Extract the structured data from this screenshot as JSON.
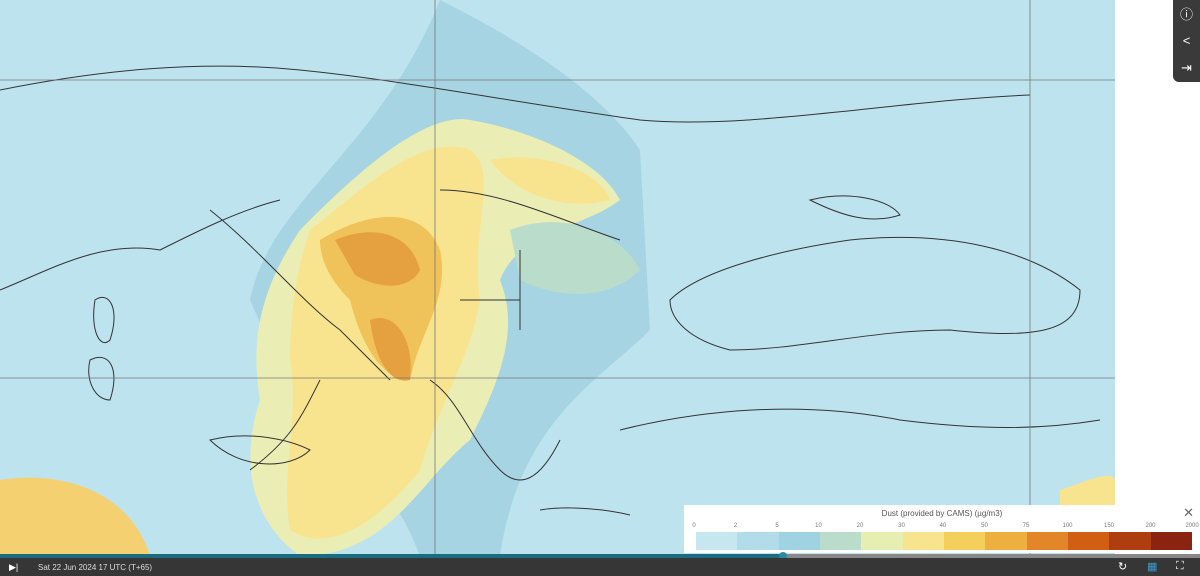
{
  "map": {
    "layer": "Dust"
  },
  "side_icons": [
    "info-icon",
    "share-icon",
    "export-icon"
  ],
  "legend": {
    "title": "Dust (provided by CAMS) (µg/m3)",
    "ticks": [
      "0",
      "2",
      "5",
      "10",
      "20",
      "30",
      "40",
      "50",
      "75",
      "100",
      "150",
      "200",
      "2000"
    ],
    "colors": [
      "#c6e6f0",
      "#b3dcea",
      "#9fd2e3",
      "#b9dccb",
      "#e7eeb2",
      "#f8e38e",
      "#f5cf5c",
      "#edb040",
      "#e38629",
      "#d15e12",
      "#ae3d10",
      "#8a2410"
    ]
  },
  "timeline": {
    "date": "Sat 22 Jun 2024 17 UTC (T+65)",
    "progress": 0.65
  },
  "controls": {
    "play": "▶|",
    "refresh": "↻",
    "layers": "▦",
    "fullscreen": "⛶"
  }
}
